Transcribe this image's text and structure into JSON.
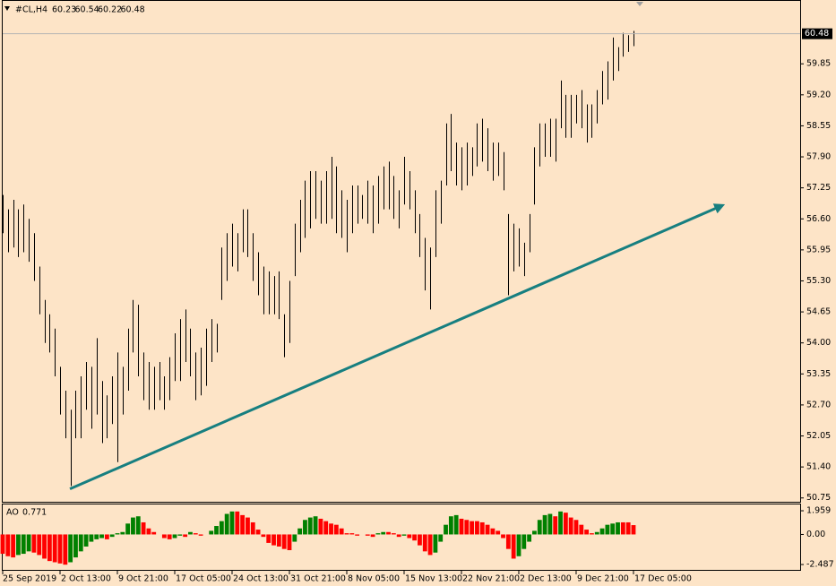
{
  "chart_data": [
    {
      "type": "ohlc",
      "title": "#CL,H4",
      "header_values": [
        60.23,
        60.54,
        60.22,
        60.48
      ],
      "categories": [
        "25 Sep 2019",
        null,
        null,
        null,
        null,
        null,
        null,
        null,
        null,
        null,
        null,
        "2 Oct 13:00",
        null,
        null,
        null,
        null,
        null,
        null,
        null,
        null,
        null,
        null,
        "9 Oct 21:00",
        null,
        null,
        null,
        null,
        null,
        null,
        null,
        null,
        null,
        null,
        "17 Oct 05:00",
        null,
        null,
        null,
        null,
        null,
        null,
        null,
        null,
        null,
        null,
        "24 Oct 13:00",
        null,
        null,
        null,
        null,
        null,
        null,
        null,
        null,
        null,
        null,
        "31 Oct 21:00",
        null,
        null,
        null,
        null,
        null,
        null,
        null,
        null,
        null,
        null,
        "8 Nov 05:00",
        null,
        null,
        null,
        null,
        null,
        null,
        null,
        null,
        null,
        null,
        "15 Nov 13:00",
        null,
        null,
        null,
        null,
        null,
        null,
        null,
        null,
        null,
        null,
        "22 Nov 21:00",
        null,
        null,
        null,
        null,
        null,
        null,
        null,
        null,
        null,
        null,
        "2 Dec 13:00",
        null,
        null,
        null,
        null,
        null,
        null,
        null,
        null,
        null,
        null,
        "9 Dec 21:00",
        null,
        null,
        null,
        null,
        null,
        null,
        null,
        null,
        null,
        null,
        "17 Dec 05:00"
      ],
      "high": [
        57.1,
        56.8,
        57.0,
        56.8,
        56.9,
        56.6,
        56.3,
        55.6,
        54.9,
        54.6,
        54.3,
        53.5,
        53.0,
        52.6,
        53.0,
        53.3,
        53.6,
        53.5,
        54.1,
        53.2,
        52.9,
        53.3,
        53.8,
        53.5,
        54.3,
        54.9,
        54.8,
        53.8,
        53.6,
        53.5,
        53.6,
        53.3,
        53.7,
        54.2,
        54.5,
        54.7,
        54.3,
        53.8,
        53.9,
        54.3,
        54.5,
        54.4,
        56.0,
        56.3,
        56.5,
        56.3,
        56.8,
        56.8,
        56.3,
        55.9,
        55.6,
        55.5,
        55.4,
        55.5,
        54.6,
        55.3,
        56.5,
        57.0,
        57.4,
        57.6,
        57.6,
        57.4,
        57.6,
        57.9,
        57.7,
        57.2,
        57.0,
        57.3,
        57.3,
        57.1,
        57.4,
        57.3,
        57.5,
        57.7,
        57.8,
        57.5,
        57.2,
        57.9,
        57.6,
        57.2,
        56.7,
        56.2,
        56.0,
        57.2,
        57.4,
        58.6,
        58.8,
        58.2,
        58.1,
        58.2,
        58.1,
        58.6,
        58.7,
        58.5,
        58.2,
        58.2,
        58.0,
        56.7,
        56.5,
        56.4,
        56.1,
        56.7,
        58.1,
        58.6,
        58.6,
        58.7,
        58.7,
        59.5,
        59.2,
        59.2,
        59.2,
        59.3,
        59.0,
        59.0,
        59.3,
        59.7,
        59.9,
        60.4,
        60.2,
        60.5,
        60.45,
        60.54
      ],
      "low": [
        56.3,
        55.9,
        56.0,
        55.8,
        55.9,
        55.7,
        55.3,
        54.6,
        54.0,
        53.8,
        53.3,
        52.5,
        52.0,
        51.0,
        52.0,
        52.0,
        52.6,
        52.2,
        52.5,
        51.9,
        52.0,
        52.3,
        51.5,
        52.5,
        53.0,
        53.8,
        53.3,
        52.8,
        52.6,
        52.6,
        52.8,
        52.6,
        52.8,
        53.2,
        53.2,
        53.6,
        53.3,
        52.8,
        52.9,
        53.1,
        53.6,
        53.8,
        54.9,
        55.3,
        55.6,
        55.5,
        55.9,
        55.8,
        55.3,
        55.0,
        54.6,
        54.6,
        54.6,
        54.5,
        53.7,
        54.0,
        55.4,
        55.9,
        56.2,
        56.4,
        56.6,
        56.5,
        56.5,
        56.6,
        56.3,
        56.2,
        55.9,
        56.3,
        56.5,
        56.6,
        56.5,
        56.3,
        56.5,
        56.8,
        56.8,
        56.6,
        56.4,
        56.9,
        56.8,
        56.3,
        55.8,
        55.1,
        54.7,
        55.8,
        56.5,
        57.3,
        57.6,
        57.3,
        57.2,
        57.3,
        57.5,
        57.7,
        57.8,
        57.6,
        57.4,
        57.5,
        57.2,
        55.0,
        55.5,
        55.6,
        55.4,
        55.9,
        56.9,
        57.7,
        57.9,
        57.9,
        57.8,
        58.5,
        58.3,
        58.3,
        58.6,
        58.5,
        58.2,
        58.3,
        58.6,
        59.0,
        59.1,
        59.5,
        59.7,
        60.0,
        60.1,
        60.22
      ],
      "color": "#000000",
      "last_price": 60.48,
      "ylim": [
        50.67,
        61.15
      ],
      "yticks": [
        50.75,
        {
          "value": 51.4,
          "label": "51.40"
        },
        52.05,
        {
          "value": 52.7,
          "label": "52.70"
        },
        53.35,
        {
          "value": 54,
          "label": "54.00"
        },
        54.65,
        {
          "value": 55.3,
          "label": "55.30"
        },
        55.95,
        {
          "value": 56.6,
          "label": "56.60"
        },
        57.25,
        {
          "value": 57.9,
          "label": "57.90"
        },
        58.55,
        {
          "value": 59.2,
          "label": "59.20"
        },
        59.85
      ],
      "trendline": {
        "x": [
          12.9,
          137.8
        ],
        "y": [
          50.94,
          56.87
        ],
        "color": "#177f80"
      }
    },
    {
      "type": "bar",
      "title": "AO",
      "values": [
        -1.6,
        -1.8,
        -1.9,
        -1.7,
        -1.6,
        -1.4,
        -1.5,
        -1.7,
        -2.0,
        -2.2,
        -2.3,
        -2.4,
        -2.5,
        -2.3,
        -1.9,
        -1.4,
        -1.0,
        -0.6,
        -0.4,
        -0.3,
        -0.4,
        -0.2,
        0.1,
        0.2,
        0.9,
        1.4,
        1.5,
        1.0,
        0.5,
        0.2,
        0.0,
        -0.3,
        -0.4,
        -0.3,
        -0.1,
        -0.2,
        0.2,
        0.1,
        -0.1,
        0.0,
        0.3,
        0.7,
        1.1,
        1.7,
        1.9,
        1.9,
        1.6,
        1.4,
        1.0,
        0.4,
        -0.2,
        -0.7,
        -0.9,
        -1.0,
        -1.2,
        -1.3,
        -0.6,
        0.5,
        1.2,
        1.4,
        1.5,
        1.3,
        1.1,
        0.9,
        0.8,
        0.5,
        0.1,
        0.1,
        -0.1,
        0.0,
        -0.1,
        -0.2,
        0.1,
        0.2,
        0.2,
        0.1,
        -0.2,
        -0.1,
        -0.3,
        -0.5,
        -0.9,
        -1.4,
        -1.7,
        -1.5,
        -0.6,
        0.8,
        1.5,
        1.6,
        1.3,
        1.2,
        1.1,
        1.1,
        1.0,
        0.8,
        0.5,
        0.3,
        -0.3,
        -1.2,
        -2.0,
        -1.8,
        -1.2,
        -0.6,
        0.3,
        1.2,
        1.6,
        1.7,
        1.5,
        1.9,
        1.8,
        1.4,
        1.2,
        0.8,
        0.4,
        0.1,
        0.2,
        0.5,
        0.8,
        0.9,
        1.0,
        1.0,
        1.0,
        0.771
      ],
      "up_color": "#008000",
      "down_color": "#ff0000",
      "ylim": [
        -2.93,
        2.48
      ],
      "yticks": [
        1.959,
        {
          "value": 0,
          "label": "0.00"
        },
        -2.487
      ]
    }
  ]
}
